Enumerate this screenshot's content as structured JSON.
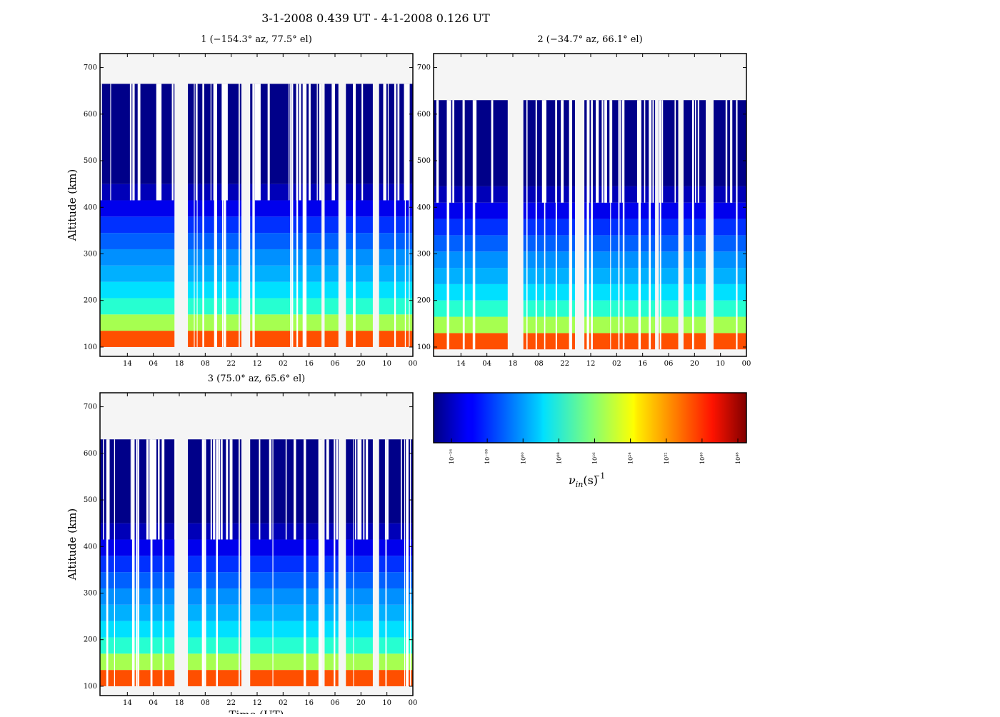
{
  "title": "3-1-2008 0.439 UT - 4-1-2008 0.126 UT",
  "chart_data": [
    {
      "type": "heatmap",
      "panel": 1,
      "title": "1 (−154.3° az, 77.5° el)",
      "xlabel": "",
      "ylabel": "Altitude (km)",
      "x_ticks": [
        "14",
        "04",
        "18",
        "08",
        "22",
        "12",
        "02",
        "16",
        "06",
        "20",
        "10",
        "00"
      ],
      "y_ticks": [
        "100",
        "200",
        "300",
        "400",
        "500",
        "600",
        "700"
      ],
      "ylim": [
        80,
        730
      ],
      "data_top_km": 665,
      "band_edges_km": [
        100,
        135,
        170,
        205,
        240,
        275,
        310,
        345,
        380,
        415,
        450,
        665
      ],
      "gaps": [
        [
          0.238,
          0.281
        ],
        [
          0.443,
          0.447
        ],
        [
          0.452,
          0.48
        ],
        [
          0.708,
          0.718
        ],
        [
          0.762,
          0.786
        ],
        [
          0.872,
          0.892
        ]
      ],
      "time_range_frac": [
        0.0,
        1.0
      ]
    },
    {
      "type": "heatmap",
      "panel": 2,
      "title": "2 (−34.7° az, 66.1° el)",
      "xlabel": "",
      "ylabel": "",
      "x_ticks": [
        "14",
        "04",
        "18",
        "08",
        "22",
        "12",
        "02",
        "16",
        "06",
        "20",
        "10",
        "00"
      ],
      "y_ticks": [
        "100",
        "200",
        "300",
        "400",
        "500",
        "600",
        "700"
      ],
      "ylim": [
        80,
        730
      ],
      "data_top_km": 630,
      "band_edges_km": [
        95,
        130,
        165,
        200,
        235,
        270,
        305,
        340,
        375,
        410,
        445,
        630
      ],
      "gaps": [
        [
          0.237,
          0.287
        ],
        [
          0.435,
          0.443
        ],
        [
          0.452,
          0.482
        ],
        [
          0.708,
          0.72
        ],
        [
          0.782,
          0.799
        ],
        [
          0.87,
          0.895
        ]
      ],
      "time_range_frac": [
        0.0,
        1.0
      ]
    },
    {
      "type": "heatmap",
      "panel": 3,
      "title": "3 (75.0° az, 65.6° el)",
      "xlabel": "Time (UT)",
      "ylabel": "Altitude (km)",
      "x_ticks": [
        "14",
        "04",
        "18",
        "08",
        "22",
        "12",
        "02",
        "16",
        "06",
        "20",
        "10",
        "00"
      ],
      "y_ticks": [
        "100",
        "200",
        "300",
        "400",
        "500",
        "600",
        "700"
      ],
      "ylim": [
        80,
        730
      ],
      "data_top_km": 630,
      "band_edges_km": [
        100,
        135,
        170,
        205,
        240,
        275,
        310,
        345,
        380,
        415,
        450,
        630
      ],
      "gaps": [
        [
          0.238,
          0.281
        ],
        [
          0.443,
          0.447
        ],
        [
          0.452,
          0.48
        ],
        [
          0.708,
          0.718
        ],
        [
          0.762,
          0.786
        ],
        [
          0.872,
          0.892
        ]
      ],
      "time_range_frac": [
        0.0,
        1.0
      ]
    }
  ],
  "colorbar": {
    "label": "ν",
    "label_sub": "in",
    "label_unit": "(s)",
    "label_sup": "−1",
    "ticks": [
      "10⁻¹⁶",
      "10⁻⁰⁸",
      "10⁰⁰",
      "10⁰⁸",
      "10¹⁶",
      "10²⁴",
      "10³²",
      "10⁴⁰",
      "10⁴⁸"
    ],
    "colormap": "jet"
  },
  "colors": {
    "missing": "#f5f5f5",
    "band_colors": [
      "#ff4f00",
      "#a6ff50",
      "#26ffd1",
      "#00e0ff",
      "#00b0ff",
      "#0090ff",
      "#0060ff",
      "#0030ff",
      "#0000ed",
      "#0000b8",
      "#000089"
    ]
  }
}
